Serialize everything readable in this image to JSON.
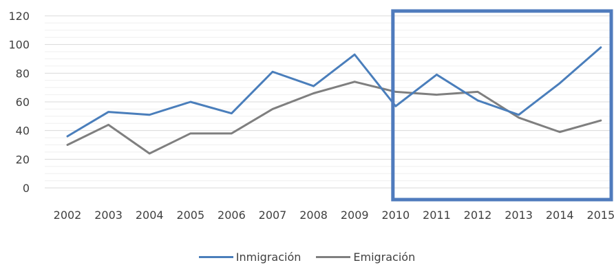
{
  "chart_data": {
    "type": "line",
    "categories": [
      "2002",
      "2003",
      "2004",
      "2005",
      "2006",
      "2007",
      "2008",
      "2009",
      "2010",
      "2011",
      "2012",
      "2013",
      "2014",
      "2015"
    ],
    "series": [
      {
        "name": "Inmigración",
        "color": "#4a7ebb",
        "values": [
          36,
          53,
          51,
          60,
          52,
          81,
          71,
          93,
          57,
          79,
          61,
          51,
          73,
          98
        ]
      },
      {
        "name": "Emigración",
        "color": "#7f7f7f",
        "values": [
          30,
          44,
          24,
          38,
          38,
          55,
          66,
          74,
          67,
          65,
          67,
          49,
          39,
          47
        ]
      }
    ],
    "yticks": [
      "0",
      "20",
      "40",
      "60",
      "80",
      "100",
      "120"
    ],
    "ylim": [
      0,
      120
    ],
    "grid": true,
    "legend_position": "bottom",
    "highlight": {
      "from": "2010",
      "to": "2015",
      "color": "#4f7bbd"
    },
    "title": "",
    "xlabel": "",
    "ylabel": ""
  }
}
